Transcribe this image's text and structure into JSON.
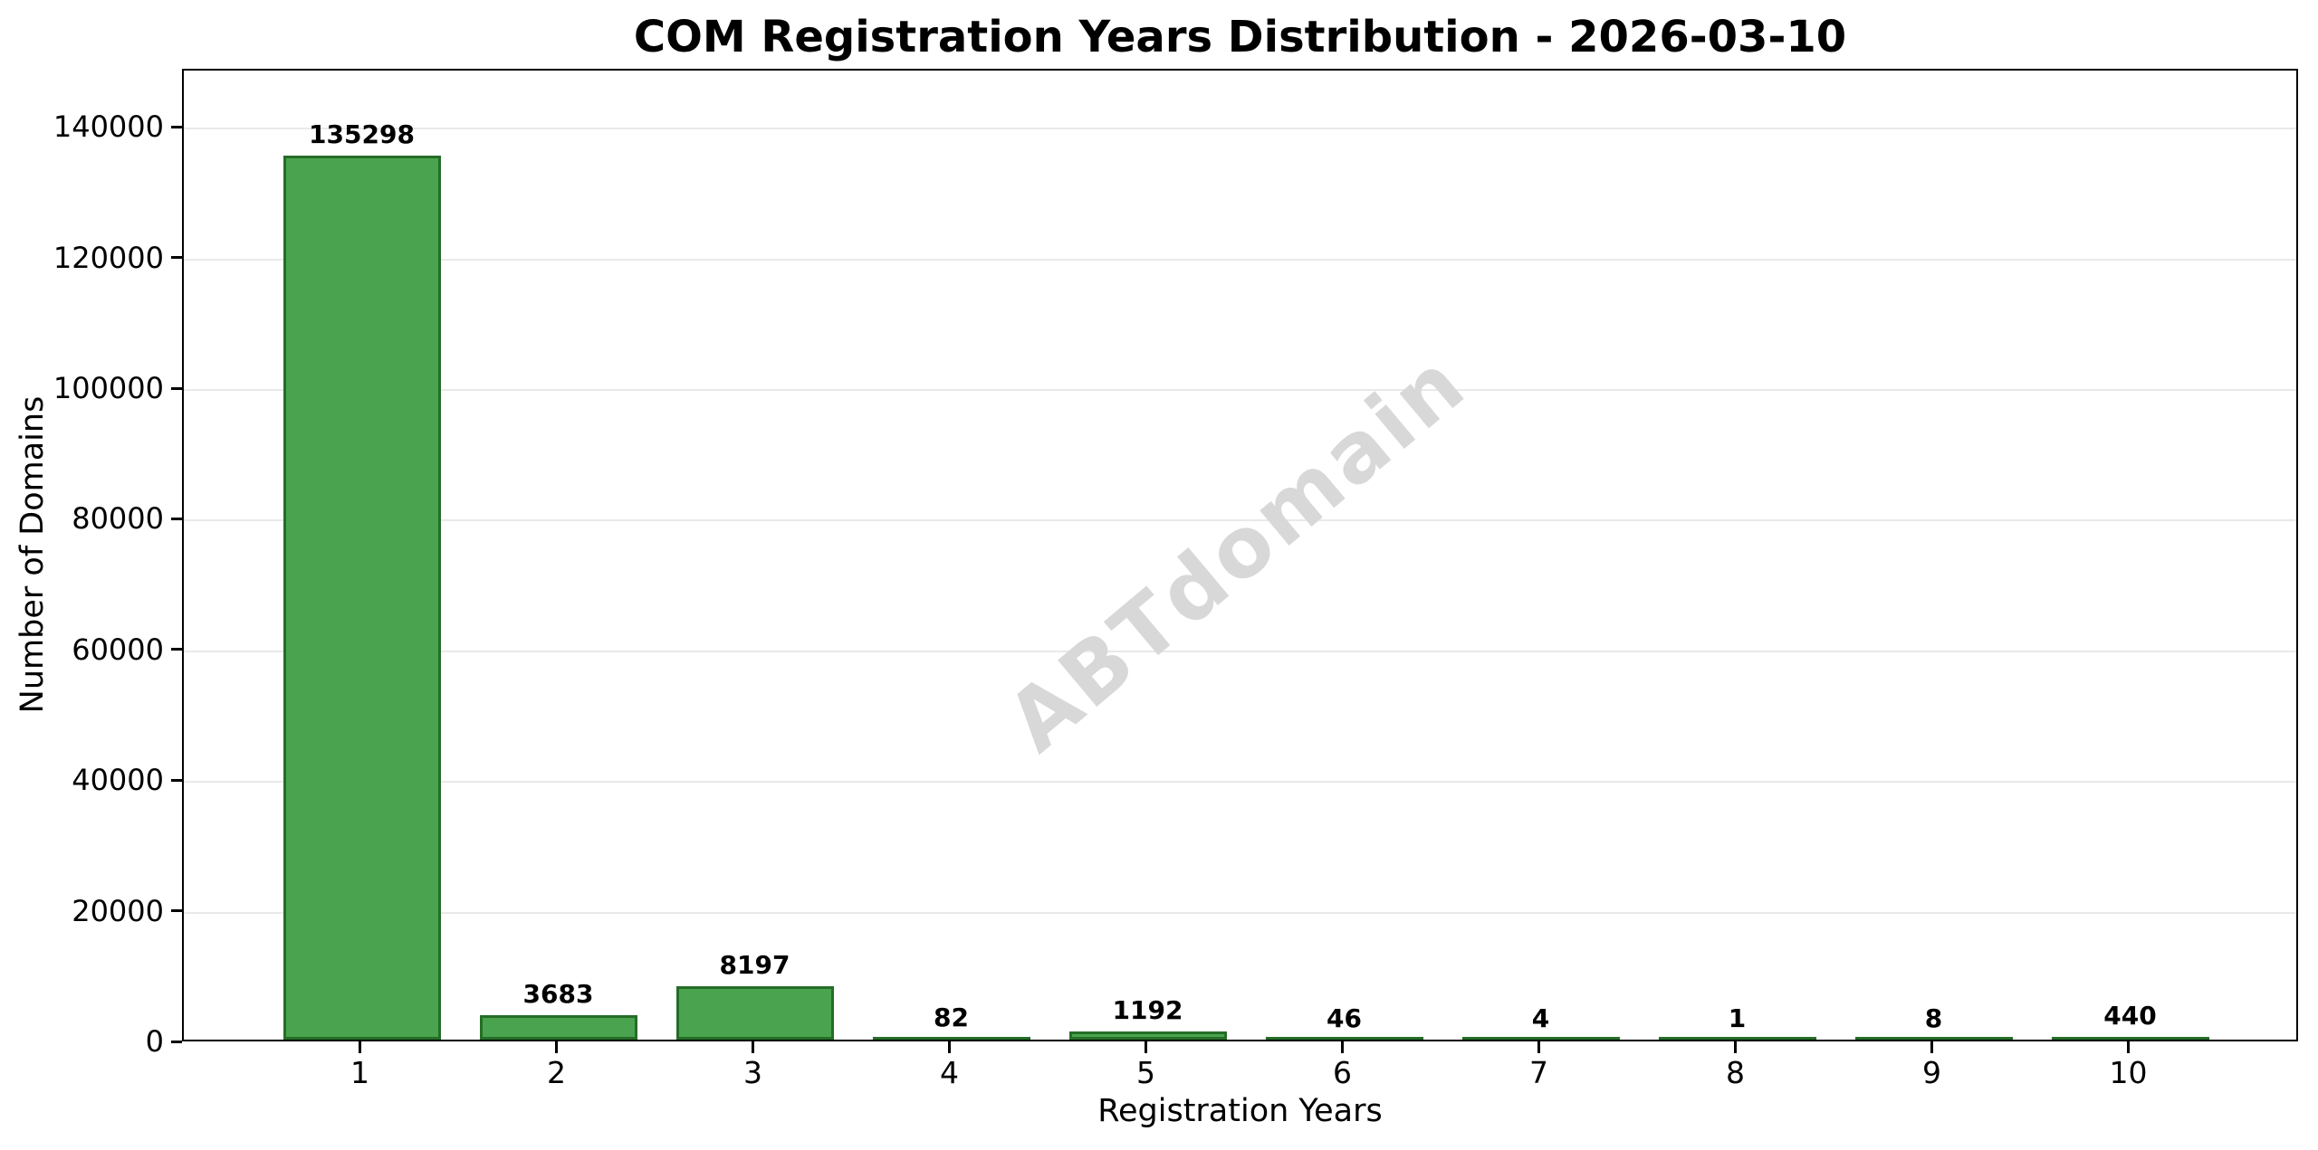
{
  "chart_data": {
    "type": "bar",
    "title": "COM Registration Years Distribution - 2026-03-10",
    "xlabel": "Registration Years",
    "ylabel": "Number of Domains",
    "categories": [
      "1",
      "2",
      "3",
      "4",
      "5",
      "6",
      "7",
      "8",
      "9",
      "10"
    ],
    "values": [
      135298,
      3683,
      8197,
      82,
      1192,
      46,
      4,
      1,
      8,
      440
    ],
    "value_labels": [
      "135298",
      "3683",
      "8197",
      "82",
      "1192",
      "46",
      "4",
      "1",
      "8",
      "440"
    ],
    "yticks": [
      0,
      20000,
      40000,
      60000,
      80000,
      100000,
      120000,
      140000
    ],
    "ytick_labels": [
      "0",
      "20000",
      "40000",
      "60000",
      "80000",
      "100000",
      "120000",
      "140000"
    ],
    "ylim": [
      0,
      148900
    ],
    "grid": "horizontal",
    "legend": "none",
    "watermark": "ABTdomain",
    "colors": {
      "bar_fill": "#4aa34e",
      "bar_edge": "#256d27",
      "grid": "#e9e9e9",
      "watermark": "#d8d8d8",
      "text": "#000000",
      "background": "#ffffff"
    }
  }
}
